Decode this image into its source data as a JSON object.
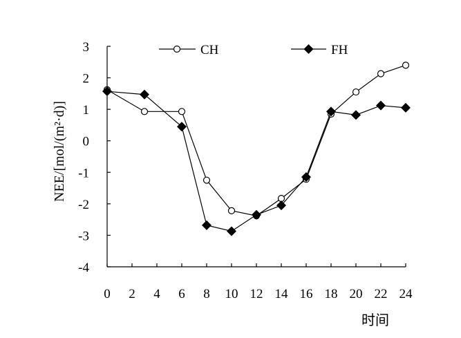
{
  "chart_data": {
    "type": "line",
    "x": [
      0,
      3,
      6,
      8,
      10,
      12,
      14,
      16,
      18,
      20,
      22,
      24
    ],
    "series": [
      {
        "name": "CH",
        "marker": "open-circle",
        "values": [
          1.62,
          0.93,
          0.93,
          -1.25,
          -2.22,
          -2.38,
          -1.83,
          -1.22,
          0.85,
          1.55,
          2.13,
          2.4
        ]
      },
      {
        "name": "FH",
        "marker": "filled-diamond",
        "values": [
          1.57,
          1.47,
          0.45,
          -2.68,
          -2.87,
          -2.35,
          -2.05,
          -1.15,
          0.93,
          0.82,
          1.12,
          1.05
        ]
      }
    ],
    "xlabel": "时间",
    "ylabel": "NEE/[mol/(m²·d)]",
    "xlim": [
      0,
      24
    ],
    "ylim": [
      -4,
      3
    ],
    "xticks": [
      "0",
      "2",
      "4",
      "6",
      "8",
      "10",
      "12",
      "14",
      "16",
      "18",
      "20",
      "22",
      "24"
    ],
    "yticks": [
      "3",
      "2",
      "1",
      "0",
      "-1",
      "-2",
      "-3",
      "-4"
    ],
    "grid": false,
    "legend_position": "top"
  }
}
